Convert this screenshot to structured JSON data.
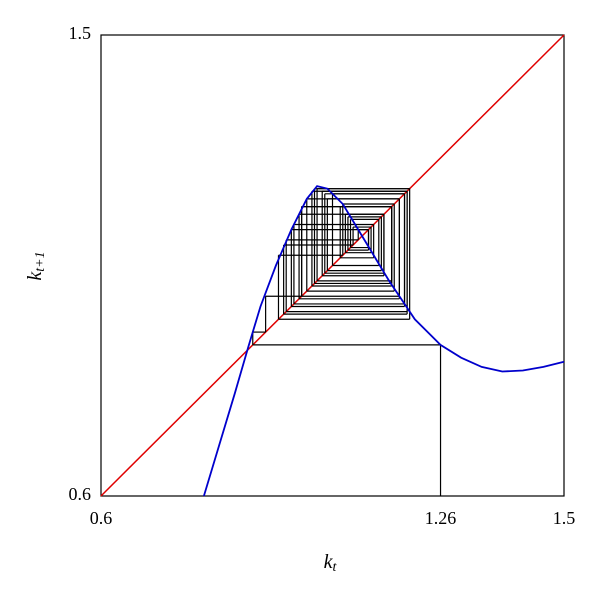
{
  "chart_data": {
    "type": "cobweb",
    "xlabel": {
      "text": "k",
      "sub": "t"
    },
    "ylabel": {
      "text": "k",
      "sub": "t+1"
    },
    "xlim": [
      0.6,
      1.5
    ],
    "ylim": [
      0.6,
      1.5
    ],
    "xticks": [
      0.6,
      1.26,
      1.5
    ],
    "yticks": [
      0.6,
      1.5
    ],
    "diagonal_color": "#e00000",
    "map": {
      "color": "#0000cc",
      "x": [
        0.8,
        0.83,
        0.86,
        0.886,
        0.91,
        0.94,
        0.97,
        1.0,
        1.02,
        1.04,
        1.07,
        1.1,
        1.13,
        1.16,
        1.19,
        1.21,
        1.24,
        1.26,
        1.3,
        1.34,
        1.38,
        1.42,
        1.46,
        1.5
      ],
      "y": [
        0.6,
        0.7,
        0.8,
        0.89,
        0.97,
        1.05,
        1.12,
        1.18,
        1.205,
        1.2,
        1.17,
        1.12,
        1.07,
        1.02,
        0.975,
        0.945,
        0.915,
        0.895,
        0.87,
        0.852,
        0.843,
        0.845,
        0.852,
        0.862
      ]
    },
    "cobweb": {
      "color": "#000000",
      "values": [
        1.26,
        0.895,
        0.92,
        0.99,
        1.165,
        1.01,
        1.195,
        0.96,
        1.1,
        1.12,
        1.085,
        1.14,
        1.05,
        1.19,
        0.97,
        1.12,
        1.08,
        1.145,
        1.04,
        1.18,
        0.99,
        1.165,
        1.02,
        1.2,
        0.945,
        1.07,
        1.17,
        1.0,
        1.18,
        0.985,
        1.15,
        1.03,
        1.195,
        0.955,
        1.09,
        1.125,
        1.075,
        1.15,
        1.035,
        1.19,
        0.975,
        1.13,
        1.065,
        1.165,
        1.015,
        1.2
      ]
    }
  }
}
